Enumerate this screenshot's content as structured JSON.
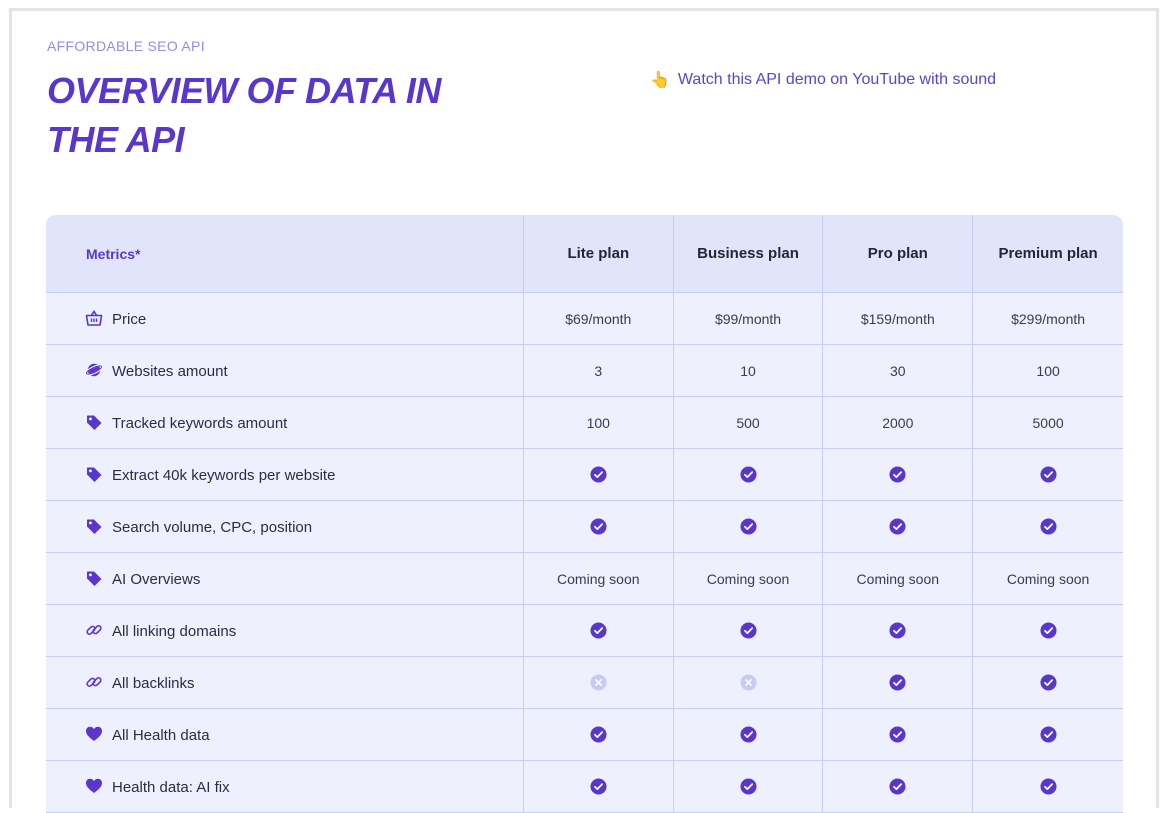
{
  "header": {
    "eyebrow": "AFFORDABLE SEO API",
    "title": "OVERVIEW OF DATA IN THE API",
    "demo_link": "Watch this API demo on YouTube with sound"
  },
  "colors": {
    "accent": "#5a37cc",
    "header_bg": "#e1e5fc",
    "row_bg": "#eef0fd",
    "grid": "#c9cdf0",
    "check": "#5a37cc",
    "unavailable": "#c5cbf5"
  },
  "table": {
    "columns": [
      "Metrics*",
      "Lite plan",
      "Business plan",
      "Pro plan",
      "Premium plan"
    ],
    "rows": [
      {
        "icon": "basket-icon",
        "label": "Price",
        "values": [
          "$69/month",
          "$99/month",
          "$159/month",
          "$299/month"
        ]
      },
      {
        "icon": "planet-icon",
        "label": "Websites amount",
        "values": [
          "3",
          "10",
          "30",
          "100"
        ]
      },
      {
        "icon": "tag-icon",
        "label": "Tracked keywords amount",
        "values": [
          "100",
          "500",
          "2000",
          "5000"
        ]
      },
      {
        "icon": "tag-icon",
        "label": "Extract 40k keywords per website",
        "values": [
          "check",
          "check",
          "check",
          "check"
        ]
      },
      {
        "icon": "tag-icon",
        "label": "Search volume, CPC, position",
        "values": [
          "check",
          "check",
          "check",
          "check"
        ]
      },
      {
        "icon": "tag-icon",
        "label": "AI Overviews",
        "values": [
          "Coming soon",
          "Coming soon",
          "Coming soon",
          "Coming soon"
        ]
      },
      {
        "icon": "link-icon",
        "label": "All linking domains",
        "values": [
          "check",
          "check",
          "check",
          "check"
        ]
      },
      {
        "icon": "link-icon",
        "label": "All backlinks",
        "values": [
          "cross",
          "cross",
          "check",
          "check"
        ]
      },
      {
        "icon": "heart-icon",
        "label": "All Health data",
        "values": [
          "check",
          "check",
          "check",
          "check"
        ]
      },
      {
        "icon": "heart-icon",
        "label": "Health data: AI fix",
        "values": [
          "check",
          "check",
          "check",
          "check"
        ]
      }
    ]
  }
}
